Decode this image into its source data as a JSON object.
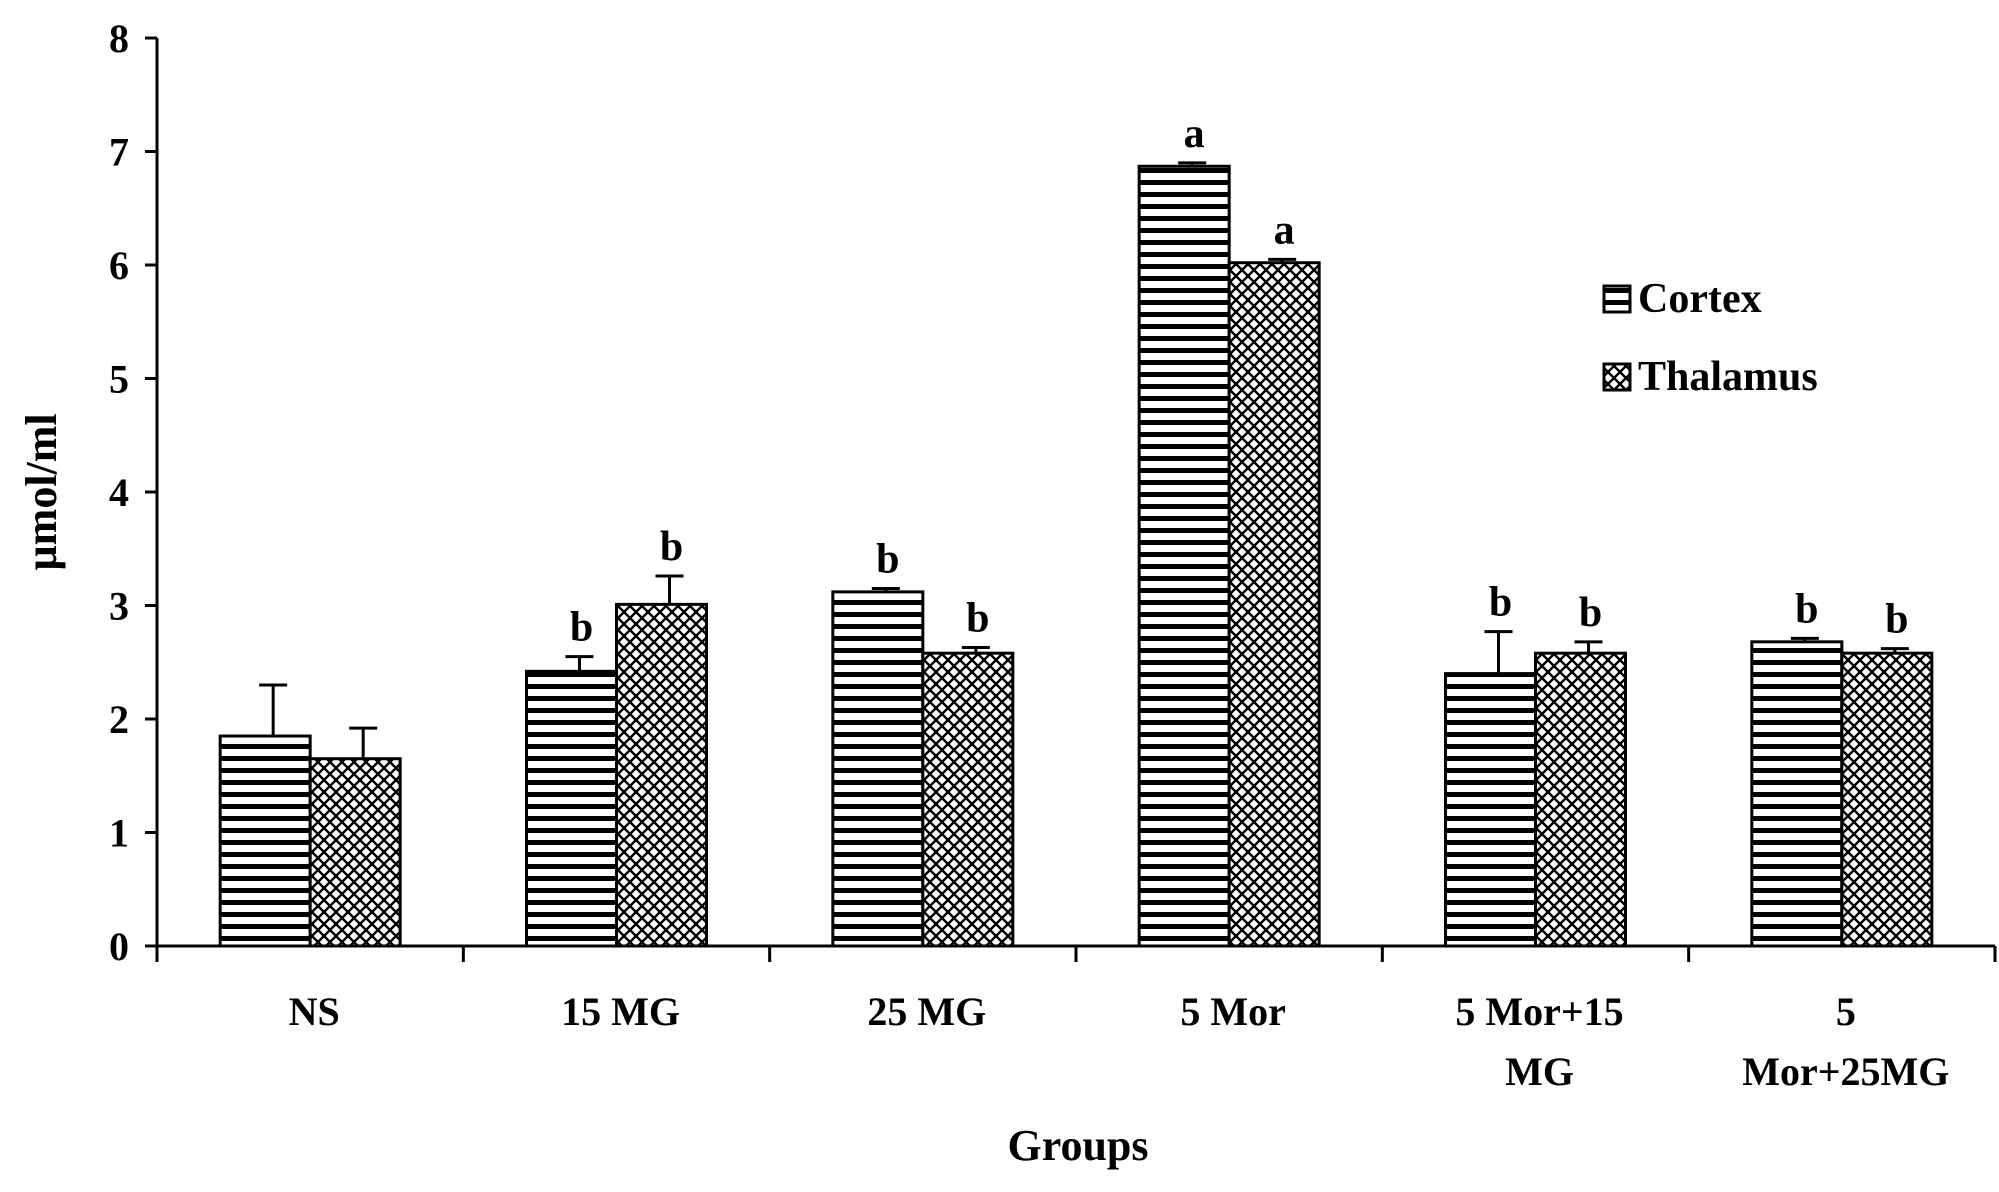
{
  "chart_data": {
    "type": "bar",
    "title": "",
    "xlabel": "Groups",
    "ylabel": "µmol/ml",
    "ylim": [
      0,
      8
    ],
    "yticks": [
      "0",
      "1",
      "2",
      "3",
      "4",
      "5",
      "6",
      "7",
      "8"
    ],
    "categories": [
      [
        "NS"
      ],
      [
        "15 MG"
      ],
      [
        "25 MG"
      ],
      [
        "5 Mor"
      ],
      [
        "5 Mor+15",
        "MG"
      ],
      [
        "5",
        "Mor+25MG"
      ]
    ],
    "series": [
      {
        "name": "Cortex",
        "pattern": "horizontal-stripes",
        "values": [
          1.85,
          2.42,
          3.12,
          6.87,
          2.4,
          2.68
        ],
        "errors": [
          0.45,
          0.13,
          0.03,
          0.03,
          0.37,
          0.03
        ],
        "sig": [
          "",
          "b",
          "b",
          "a",
          "b",
          "b"
        ]
      },
      {
        "name": "Thalamus",
        "pattern": "crosshatch",
        "values": [
          1.65,
          3.01,
          2.58,
          6.02,
          2.58,
          2.58
        ],
        "errors": [
          0.27,
          0.25,
          0.05,
          0.03,
          0.1,
          0.04
        ],
        "sig": [
          "",
          "b",
          "b",
          "a",
          "b",
          "b"
        ]
      }
    ],
    "legend": {
      "position": "right",
      "entries": [
        "Cortex",
        "Thalamus"
      ]
    },
    "grid": false,
    "colors": {
      "axis": "#000000",
      "bar_fill": "#ffffff",
      "pattern": "#000000"
    }
  }
}
